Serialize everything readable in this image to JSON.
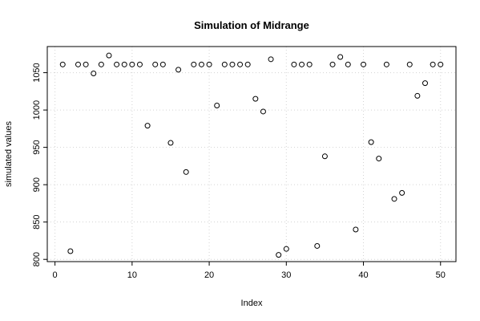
{
  "chart_data": {
    "type": "scatter",
    "title": "Simulation of Midrange",
    "xlabel": "Index",
    "ylabel": "simulated values",
    "xlim": [
      0,
      50
    ],
    "ylim": [
      800,
      1080
    ],
    "x_ticks": [
      0,
      10,
      20,
      30,
      40,
      50
    ],
    "y_ticks": [
      800,
      850,
      900,
      950,
      1000,
      1050
    ],
    "grid": true,
    "legend": "none",
    "series": [
      {
        "x": [
          1,
          2,
          3,
          4,
          5,
          6,
          7,
          8,
          9,
          10,
          11,
          12,
          13,
          14,
          15,
          16,
          17,
          18,
          19,
          20,
          21,
          22,
          23,
          24,
          25,
          26,
          27,
          28,
          29,
          30,
          31,
          32,
          33,
          34,
          35,
          36,
          37,
          38,
          39,
          40,
          41,
          42,
          43,
          44,
          45,
          46,
          47,
          48,
          49,
          50
        ],
        "values": [
          1061,
          811,
          1061,
          1061,
          1049,
          1061,
          1073,
          1061,
          1061,
          1061,
          1061,
          979,
          1061,
          1061,
          956,
          1054,
          917,
          1061,
          1061,
          1061,
          1006,
          1061,
          1061,
          1061,
          1061,
          1015,
          998,
          1068,
          806,
          814,
          1061,
          1061,
          1061,
          818,
          938,
          1061,
          1071,
          1061,
          840,
          1061,
          957,
          935,
          1061,
          881,
          889,
          1061,
          1019,
          1036,
          1061,
          1061
        ]
      }
    ]
  }
}
